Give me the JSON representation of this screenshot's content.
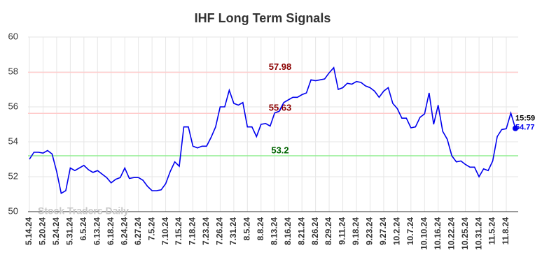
{
  "chart_data": {
    "type": "line",
    "title": "IHF Long Term Signals",
    "watermark": "Stock Traders Daily",
    "categories": [
      "5.14.24",
      null,
      null,
      "5.20.24",
      null,
      null,
      "5.24.24",
      null,
      null,
      "5.31.24",
      null,
      null,
      "6.5.24",
      null,
      null,
      "6.13.24",
      null,
      null,
      "6.18.24",
      null,
      null,
      "6.24.24",
      null,
      null,
      "6.27.24",
      null,
      null,
      "7.5.24",
      null,
      null,
      "7.10.24",
      null,
      null,
      "7.15.24",
      null,
      null,
      "7.18.24",
      null,
      null,
      "7.23.24",
      null,
      null,
      "7.26.24",
      null,
      null,
      "7.31.24",
      null,
      null,
      "8.5.24",
      null,
      null,
      "8.8.24",
      null,
      null,
      "8.13.24",
      null,
      null,
      "8.16.24",
      null,
      null,
      "8.21.24",
      null,
      null,
      "8.26.24",
      null,
      null,
      "8.29.24",
      null,
      null,
      "9.11.24",
      null,
      null,
      "9.18.24",
      null,
      null,
      "9.23.24",
      null,
      null,
      "9.27.24",
      null,
      null,
      "10.2.24",
      null,
      null,
      "10.7.24",
      null,
      null,
      "10.10.24",
      null,
      null,
      "10.16.24",
      null,
      null,
      "10.22.24",
      null,
      null,
      "10.25.24",
      null,
      null,
      "10.31.24",
      null,
      null,
      "11.5.24",
      null,
      null,
      "11.8.24",
      null,
      null
    ],
    "series": [
      {
        "color": "#0000ee",
        "values": [
          53.0,
          53.4,
          53.4,
          53.35,
          53.5,
          53.3,
          52.3,
          51.05,
          51.2,
          52.5,
          52.35,
          52.5,
          52.65,
          52.4,
          52.25,
          52.35,
          52.15,
          51.95,
          51.65,
          51.85,
          51.95,
          52.5,
          51.9,
          51.95,
          51.95,
          51.8,
          51.45,
          51.2,
          51.2,
          51.25,
          51.6,
          52.3,
          52.85,
          52.6,
          54.85,
          54.85,
          53.75,
          53.65,
          53.75,
          53.75,
          54.25,
          54.85,
          56.0,
          56.0,
          56.95,
          56.2,
          56.1,
          56.25,
          54.85,
          54.85,
          54.3,
          55.0,
          55.05,
          54.9,
          55.65,
          55.75,
          56.25,
          56.4,
          56.55,
          56.55,
          56.7,
          56.8,
          57.55,
          57.5,
          57.55,
          57.6,
          57.95,
          58.25,
          57.0,
          57.1,
          57.35,
          57.3,
          57.45,
          57.4,
          57.2,
          57.1,
          56.9,
          56.55,
          56.9,
          57.1,
          56.2,
          55.9,
          55.35,
          55.35,
          54.8,
          54.85,
          55.4,
          55.6,
          56.8,
          55.0,
          56.1,
          54.6,
          54.15,
          53.2,
          52.85,
          52.9,
          52.7,
          52.55,
          52.55,
          52.0,
          52.45,
          52.35,
          52.9,
          54.3,
          54.7,
          54.75,
          55.65,
          54.77
        ]
      }
    ],
    "last_time": "15:59",
    "hlines": [
      {
        "value": 57.98,
        "color": "#ffcccc",
        "label_color": "#8b0000"
      },
      {
        "value": 55.63,
        "color": "#ffcccc",
        "label_color": "#8b0000"
      },
      {
        "value": 53.2,
        "color": "#90ee90",
        "label_color": "#006400"
      }
    ],
    "ylim": [
      50,
      60
    ],
    "yticks": [
      50,
      52,
      54,
      56,
      58,
      60
    ],
    "grid": true
  }
}
